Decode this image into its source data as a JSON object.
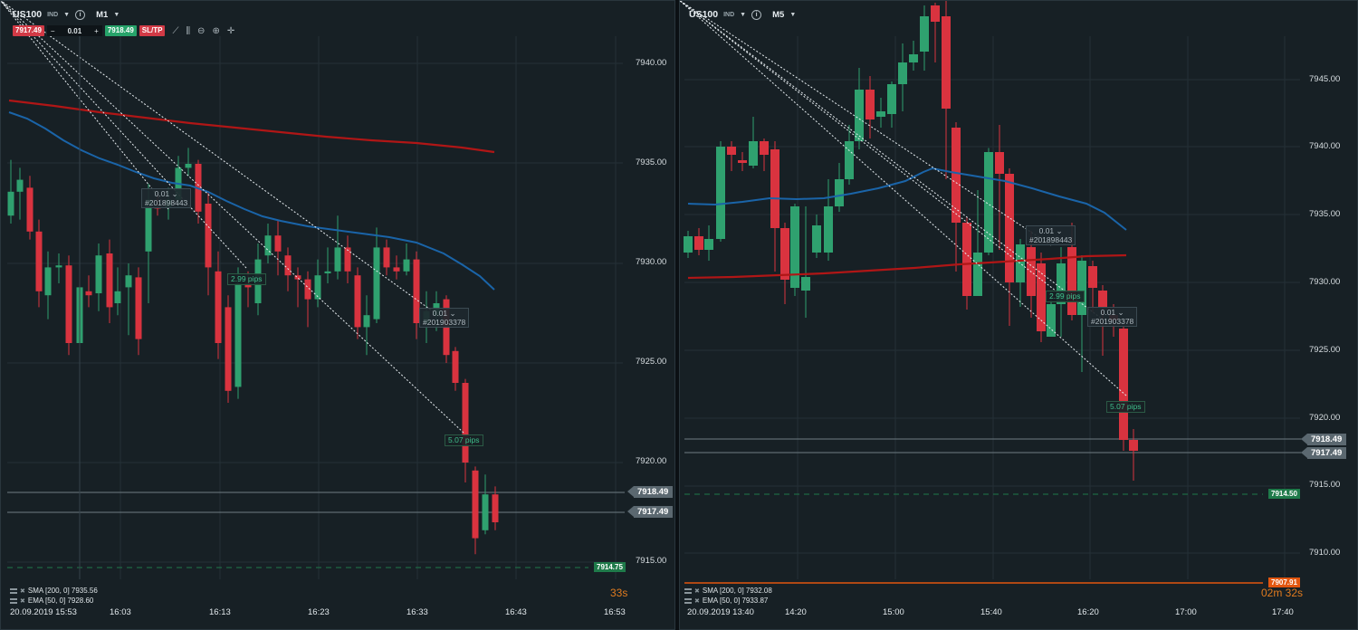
{
  "left": {
    "symbol": "US100",
    "badge": "IND",
    "timeframe": "M1",
    "sell_price": "7917.49",
    "quantity": "0.01",
    "buy_price": "7918.49",
    "sltp_label": "SL/TP",
    "y_ticks": [
      "7940.00",
      "7935.00",
      "7930.00",
      "7925.00",
      "7920.00",
      "7915.00"
    ],
    "ask_tag": "7918.49",
    "bid_tag": "7917.49",
    "pending_tag": "7914.75",
    "timer": "33s",
    "x_date": "20.09.2019 15:53",
    "x_ticks": [
      "16:03",
      "16:13",
      "16:23",
      "16:33",
      "16:43",
      "16:53"
    ],
    "sma_label": "SMA [200, 0] 7935.56",
    "ema_label": "EMA [50, 0] 7928.60",
    "tickets": [
      {
        "qty": "0.01",
        "id": "#201898443"
      },
      {
        "qty": "0.01",
        "id": "#201903378"
      }
    ],
    "pips": [
      "2.99 pips",
      "5.07 pips"
    ]
  },
  "right": {
    "symbol": "US100",
    "badge": "IND",
    "timeframe": "M5",
    "y_ticks": [
      "7945.00",
      "7940.00",
      "7935.00",
      "7930.00",
      "7925.00",
      "7920.00",
      "7915.00",
      "7910.00"
    ],
    "ask_tag": "7918.49",
    "bid_tag": "7917.49",
    "pending_tag": "7914.50",
    "bottom_tag": "7907.91",
    "timer": "02m 32s",
    "x_date": "20.09.2019 13:40",
    "x_ticks": [
      "14:20",
      "15:00",
      "15:40",
      "16:20",
      "17:00",
      "17:40"
    ],
    "sma_label": "SMA [200, 0] 7932.08",
    "ema_label": "EMA [50, 0] 7933.87",
    "tickets": [
      {
        "qty": "0.01",
        "id": "#201898443"
      },
      {
        "qty": "0.01",
        "id": "#201903378"
      }
    ],
    "pips": [
      "2.99 pips",
      "5.07 pips"
    ]
  },
  "colors": {
    "bull": "#2fa16f",
    "bear": "#d9333f",
    "sma": "#b01616",
    "ema": "#1a64a8",
    "grid": "#243036"
  },
  "icons": [
    "chevron-down-icon",
    "info-icon",
    "line-chart-icon",
    "candles-icon",
    "zoom-out-icon",
    "zoom-in-icon",
    "crosshair-icon"
  ]
}
